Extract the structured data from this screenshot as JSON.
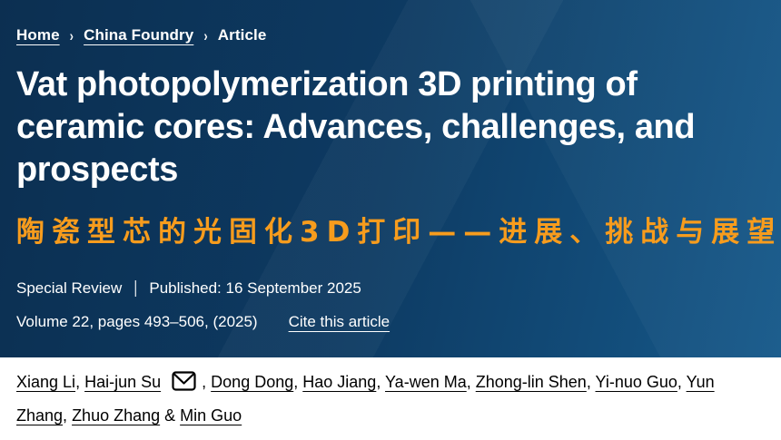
{
  "breadcrumb": {
    "separator": "›",
    "items": [
      {
        "label": "Home"
      },
      {
        "label": "China Foundry"
      },
      {
        "label": "Article"
      }
    ]
  },
  "article": {
    "title": "Vat photopolymerization 3D printing of ceramic cores: Advances, challenges, and prospects",
    "title_zh": "陶瓷型芯的光固化3D打印——进展、挑战与展望",
    "type_label": "Special Review",
    "meta_separator": "|",
    "published": "Published: 16 September 2025",
    "volume_pages": "Volume 22, pages 493–506, (2025)",
    "cite_link": "Cite this article"
  },
  "authors": {
    "names": [
      "Xiang Li",
      "Hai-jun Su",
      "Dong Dong",
      "Hao Jiang",
      "Ya-wen Ma",
      "Zhong-lin Shen",
      "Yi-nuo Guo",
      "Yun Zhang",
      "Zhuo Zhang",
      "Min Guo"
    ],
    "corresponding": "Hai-jun Su",
    "separator": ", ",
    "last_separator": " & "
  },
  "colors": {
    "hero_gradient_left": "#0c2f51",
    "hero_gradient_right": "#16598a",
    "accent_orange": "#f79c1d",
    "text_light": "#ffffff",
    "text_dark": "#000000"
  }
}
